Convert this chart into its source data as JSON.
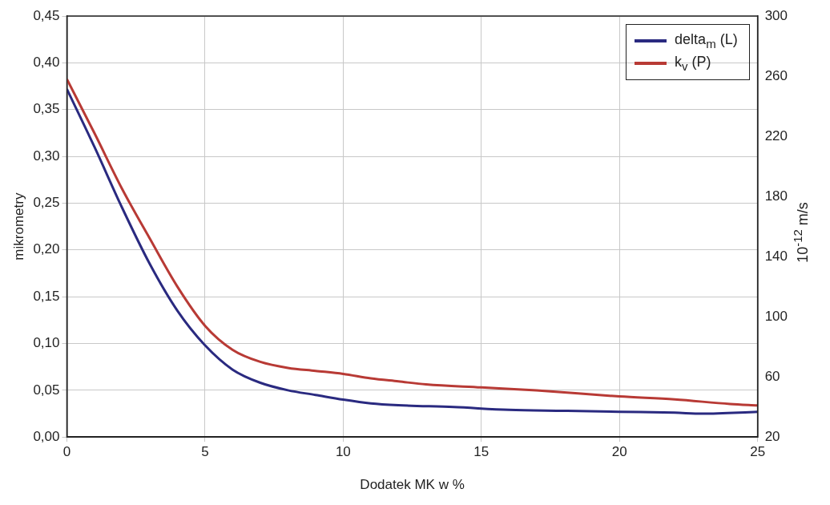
{
  "chart_data": {
    "type": "line",
    "xlabel": "Dodatek MK w %",
    "ylabel": "mikrometry",
    "y2label": "10$^{-12}$ m/s",
    "xlim": [
      0,
      25
    ],
    "xticks": [
      0,
      5,
      10,
      15,
      20,
      25
    ],
    "ylim": [
      0,
      0.45
    ],
    "yticks": [
      {
        "value": 0,
        "label": "0,00"
      },
      {
        "value": 0.05,
        "label": "0,05"
      },
      {
        "value": 0.1,
        "label": "0,10"
      },
      {
        "value": 0.15,
        "label": "0,15"
      },
      {
        "value": 0.2,
        "label": "0,20"
      },
      {
        "value": 0.25,
        "label": "0,25"
      },
      {
        "value": 0.3,
        "label": "0,30"
      },
      {
        "value": 0.35,
        "label": "0,35"
      },
      {
        "value": 0.4,
        "label": "0,40"
      },
      {
        "value": 0.45,
        "label": "0,45"
      }
    ],
    "y2lim": [
      20,
      300
    ],
    "y2ticks": [
      20,
      60,
      100,
      140,
      180,
      220,
      260,
      300
    ],
    "grid": true,
    "legend": "top right",
    "marker": "none",
    "line_style": "solid",
    "series": [
      {
        "name": "delta$_{m}$ (L)",
        "color": "#2a2a80",
        "x": [
          0,
          1,
          2,
          3,
          4,
          5,
          6,
          7,
          8,
          9,
          10,
          11,
          12,
          14,
          16,
          18,
          20,
          22,
          23,
          25
        ],
        "values": [
          0.372,
          0.31,
          0.245,
          0.185,
          0.135,
          0.098,
          0.072,
          0.058,
          0.05,
          0.045,
          0.04,
          0.036,
          0.034,
          0.032,
          0.029,
          0.028,
          0.027,
          0.026,
          0.025,
          0.027
        ]
      },
      {
        "name": "k$_{v}$ (P)",
        "color": "#b83a35",
        "axis": "y2",
        "x": [
          0,
          1,
          2,
          3,
          4,
          5,
          6,
          7,
          8,
          9,
          10,
          11,
          12,
          13,
          15,
          17,
          20,
          22,
          24,
          25
        ],
        "values": [
          258,
          222,
          185,
          152,
          120,
          94,
          78,
          70,
          66,
          64,
          62,
          59,
          57,
          55,
          53,
          51,
          47,
          45,
          42,
          41
        ]
      }
    ]
  }
}
